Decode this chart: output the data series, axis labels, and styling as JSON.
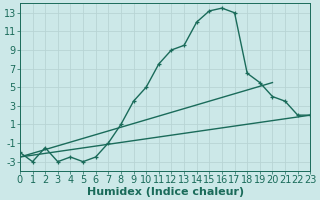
{
  "xlabel": "Humidex (Indice chaleur)",
  "background_color": "#cce8e8",
  "grid_color": "#b8d4d4",
  "line_color": "#1a6b5a",
  "x_ticks": [
    0,
    1,
    2,
    3,
    4,
    5,
    6,
    7,
    8,
    9,
    10,
    11,
    12,
    13,
    14,
    15,
    16,
    17,
    18,
    19,
    20,
    21,
    22,
    23
  ],
  "y_ticks": [
    -3,
    -1,
    1,
    3,
    5,
    7,
    9,
    11,
    13
  ],
  "xlim": [
    0,
    23
  ],
  "ylim": [
    -4,
    14
  ],
  "line1_x": [
    0,
    1,
    2,
    3,
    4,
    5,
    6,
    7,
    8,
    9,
    10,
    11,
    12,
    13,
    14,
    15,
    16,
    17,
    18,
    19,
    20,
    21,
    22,
    23
  ],
  "line1_y": [
    -2,
    -3,
    -1.5,
    -3,
    -2.5,
    -3,
    -2.5,
    -1,
    1,
    3.5,
    5,
    7.5,
    9,
    9.5,
    12,
    13.2,
    13.5,
    13,
    6.5,
    5.5,
    4,
    3.5,
    2,
    2
  ],
  "line2_x": [
    0,
    23
  ],
  "line2_y": [
    -2.5,
    2.0
  ],
  "line3_x": [
    0,
    20
  ],
  "line3_y": [
    -2.5,
    5.5
  ],
  "font_color": "#1a6b5a",
  "font_size_xlabel": 8,
  "font_size_ticks": 7
}
